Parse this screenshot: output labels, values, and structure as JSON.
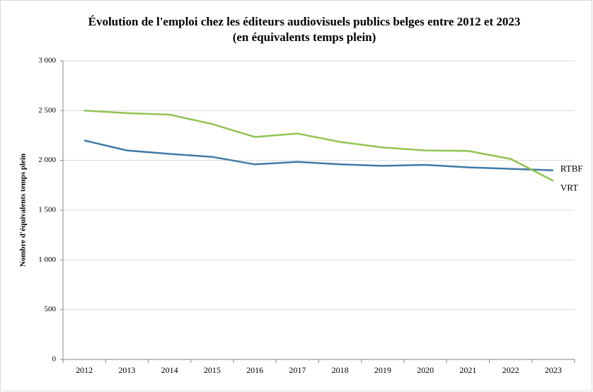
{
  "chart_data": {
    "type": "line",
    "title": "Évolution de l'emploi chez les éditeurs audiovisuels publics belges entre 2012 et 2023",
    "subtitle": "(en équivalents temps plein)",
    "y_label": "Nombre d'équivalents temps plein",
    "categories": [
      "2012",
      "2013",
      "2014",
      "2015",
      "2016",
      "2017",
      "2018",
      "2019",
      "2020",
      "2021",
      "2022",
      "2023"
    ],
    "series": [
      {
        "name": "RTBF",
        "color": "#3f7aa6",
        "values": [
          2200,
          2100,
          2065,
          2035,
          1960,
          1985,
          1960,
          1945,
          1955,
          1930,
          1915,
          1900
        ]
      },
      {
        "name": "VRT",
        "color": "#92c353",
        "values": [
          2500,
          2475,
          2460,
          2365,
          2235,
          2270,
          2185,
          2130,
          2100,
          2095,
          2015,
          1795
        ]
      }
    ],
    "ylim": [
      0,
      3000
    ],
    "yticks": [
      0,
      500,
      {
        "value": 1000,
        "label": "1 000"
      },
      {
        "value": 1500,
        "label": "1 500"
      },
      {
        "value": 2000,
        "label": "2 000"
      },
      {
        "value": 2500,
        "label": "2 500"
      },
      {
        "value": 3000,
        "label": "3 000"
      }
    ],
    "grid": true
  }
}
